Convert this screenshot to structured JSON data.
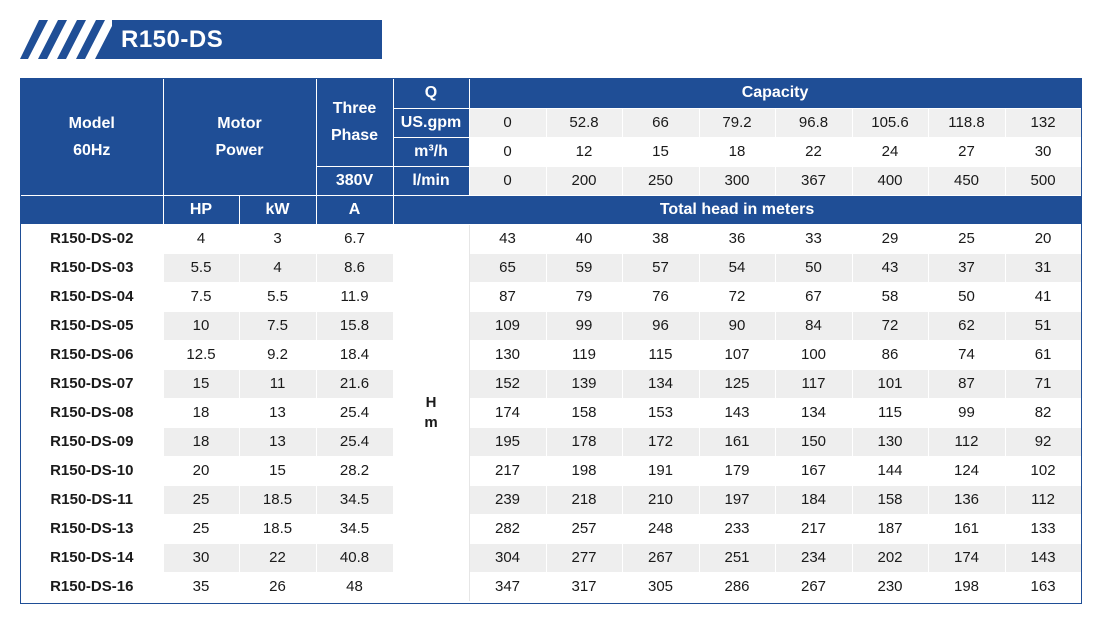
{
  "title": "R150-DS",
  "header": {
    "model": [
      "Model",
      "60Hz"
    ],
    "motor_power": [
      "Motor",
      "Power"
    ],
    "three_phase": [
      "Three",
      "Phase"
    ],
    "voltage": "380V",
    "q_label": "Q",
    "capacity_label": "Capacity",
    "unit_usgpm": "US.gpm",
    "unit_m3h": "m³/h",
    "unit_lmin": "l/min",
    "usgpm_values": [
      "0",
      "52.8",
      "66",
      "79.2",
      "96.8",
      "105.6",
      "118.8",
      "132"
    ],
    "m3h_values": [
      "0",
      "12",
      "15",
      "18",
      "22",
      "24",
      "27",
      "30"
    ],
    "lmin_values": [
      "0",
      "200",
      "250",
      "300",
      "367",
      "400",
      "450",
      "500"
    ],
    "hp": "HP",
    "kw": "kW",
    "amp": "A",
    "total_head": "Total head in meters",
    "h_label": [
      "H",
      "m"
    ]
  },
  "rows": [
    {
      "model": "R150-DS-02",
      "hp": "4",
      "kw": "3",
      "a": "6.7",
      "heads": [
        "43",
        "40",
        "38",
        "36",
        "33",
        "29",
        "25",
        "20"
      ]
    },
    {
      "model": "R150-DS-03",
      "hp": "5.5",
      "kw": "4",
      "a": "8.6",
      "heads": [
        "65",
        "59",
        "57",
        "54",
        "50",
        "43",
        "37",
        "31"
      ]
    },
    {
      "model": "R150-DS-04",
      "hp": "7.5",
      "kw": "5.5",
      "a": "11.9",
      "heads": [
        "87",
        "79",
        "76",
        "72",
        "67",
        "58",
        "50",
        "41"
      ]
    },
    {
      "model": "R150-DS-05",
      "hp": "10",
      "kw": "7.5",
      "a": "15.8",
      "heads": [
        "109",
        "99",
        "96",
        "90",
        "84",
        "72",
        "62",
        "51"
      ]
    },
    {
      "model": "R150-DS-06",
      "hp": "12.5",
      "kw": "9.2",
      "a": "18.4",
      "heads": [
        "130",
        "119",
        "115",
        "107",
        "100",
        "86",
        "74",
        "61"
      ]
    },
    {
      "model": "R150-DS-07",
      "hp": "15",
      "kw": "11",
      "a": "21.6",
      "heads": [
        "152",
        "139",
        "134",
        "125",
        "117",
        "101",
        "87",
        "71"
      ]
    },
    {
      "model": "R150-DS-08",
      "hp": "18",
      "kw": "13",
      "a": "25.4",
      "heads": [
        "174",
        "158",
        "153",
        "143",
        "134",
        "115",
        "99",
        "82"
      ]
    },
    {
      "model": "R150-DS-09",
      "hp": "18",
      "kw": "13",
      "a": "25.4",
      "heads": [
        "195",
        "178",
        "172",
        "161",
        "150",
        "130",
        "112",
        "92"
      ]
    },
    {
      "model": "R150-DS-10",
      "hp": "20",
      "kw": "15",
      "a": "28.2",
      "heads": [
        "217",
        "198",
        "191",
        "179",
        "167",
        "144",
        "124",
        "102"
      ]
    },
    {
      "model": "R150-DS-11",
      "hp": "25",
      "kw": "18.5",
      "a": "34.5",
      "heads": [
        "239",
        "218",
        "210",
        "197",
        "184",
        "158",
        "136",
        "112"
      ]
    },
    {
      "model": "R150-DS-13",
      "hp": "25",
      "kw": "18.5",
      "a": "34.5",
      "heads": [
        "282",
        "257",
        "248",
        "233",
        "217",
        "187",
        "161",
        "133"
      ]
    },
    {
      "model": "R150-DS-14",
      "hp": "30",
      "kw": "22",
      "a": "40.8",
      "heads": [
        "304",
        "277",
        "267",
        "251",
        "234",
        "202",
        "174",
        "143"
      ]
    },
    {
      "model": "R150-DS-16",
      "hp": "35",
      "kw": "26",
      "a": "48",
      "heads": [
        "347",
        "317",
        "305",
        "286",
        "267",
        "230",
        "198",
        "163"
      ]
    }
  ],
  "colors": {
    "header_blue": "#1f4e96",
    "stripe_row": "#eeeeee"
  }
}
